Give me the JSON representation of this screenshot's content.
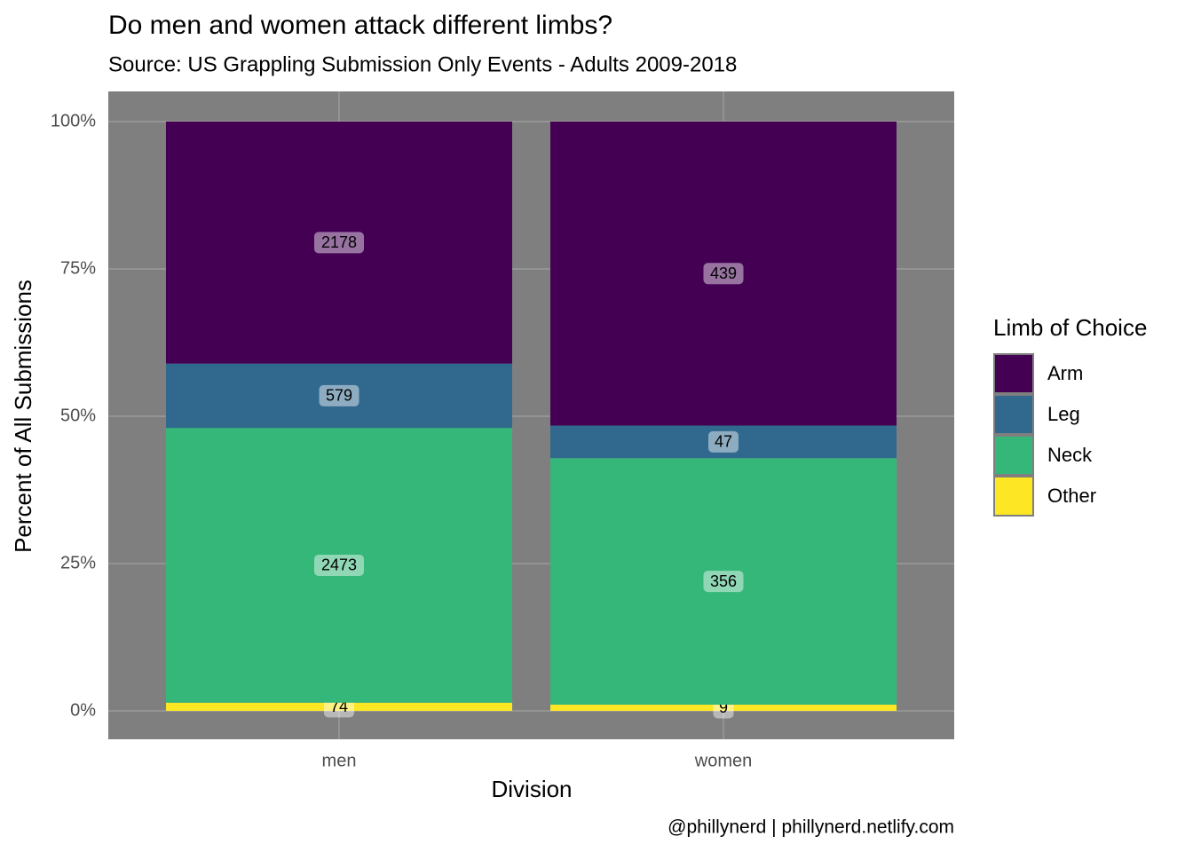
{
  "chart_data": {
    "type": "stacked_percent_bar",
    "title": "Do men and women attack different limbs?",
    "subtitle": "Source: US Grappling Submission Only Events - Adults 2009-2018",
    "x_label": "Division",
    "y_label": "Percent of All Submissions",
    "caption": "@phillynerd | phillynerd.netlify.com",
    "legend_title": "Limb of Choice",
    "legend_position": "right",
    "categories": [
      "men",
      "women"
    ],
    "series": [
      {
        "name": "Arm",
        "color": "#440154",
        "values": [
          2178,
          439
        ]
      },
      {
        "name": "Leg",
        "color": "#31688e",
        "values": [
          579,
          47
        ]
      },
      {
        "name": "Neck",
        "color": "#35b779",
        "values": [
          2473,
          356
        ]
      },
      {
        "name": "Other",
        "color": "#fde725",
        "values": [
          74,
          9
        ]
      }
    ],
    "ylim": [
      0,
      100
    ],
    "yticks": [
      {
        "value": 0,
        "label": "0%"
      },
      {
        "value": 25,
        "label": "25%"
      },
      {
        "value": 50,
        "label": "50%"
      },
      {
        "value": 75,
        "label": "75%"
      },
      {
        "value": 100,
        "label": "100%"
      }
    ],
    "grid": true
  }
}
